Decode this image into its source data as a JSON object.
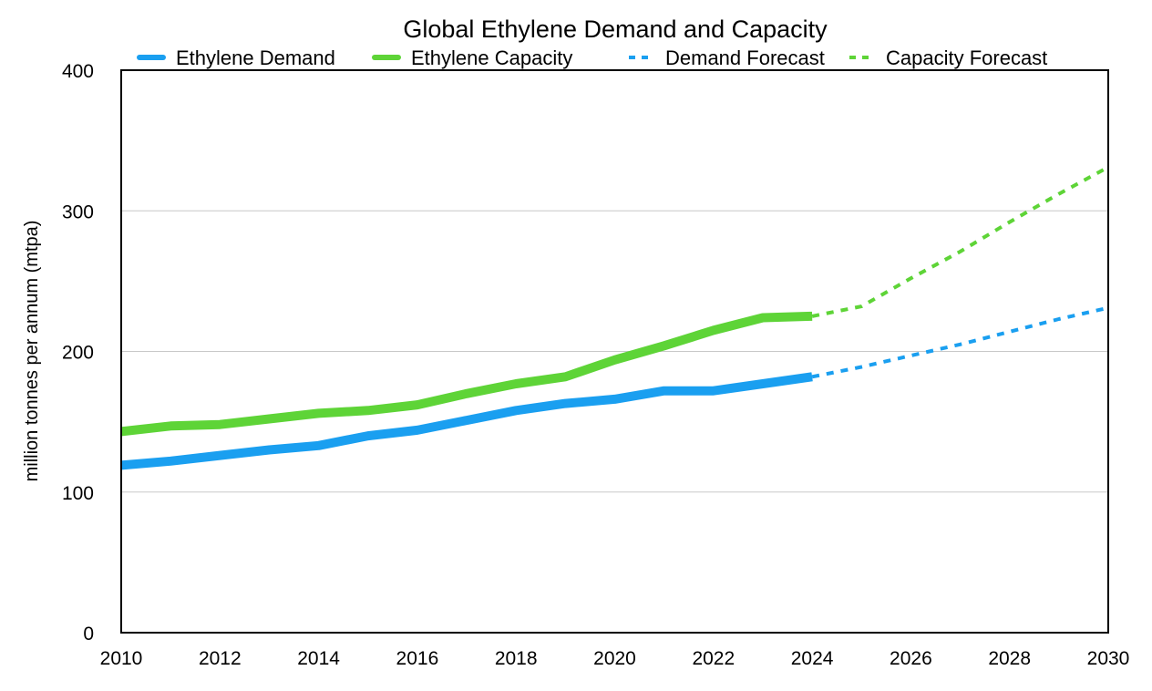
{
  "chart_data": {
    "type": "line",
    "title": "Global Ethylene Demand and Capacity",
    "xlabel": "",
    "ylabel": "million tonnes per annum (mtpa)",
    "xlim": [
      2010,
      2030
    ],
    "ylim": [
      0,
      400
    ],
    "x_ticks": [
      2010,
      2012,
      2014,
      2016,
      2018,
      2020,
      2022,
      2024,
      2026,
      2028,
      2030
    ],
    "y_ticks": [
      0,
      100,
      200,
      300,
      400
    ],
    "grid": "horizontal",
    "legend_position": "top",
    "series": [
      {
        "name": "Ethylene Demand",
        "color": "#1a9ff0",
        "style": "solid",
        "x": [
          2010,
          2011,
          2012,
          2013,
          2014,
          2015,
          2016,
          2017,
          2018,
          2019,
          2020,
          2021,
          2022,
          2023,
          2024
        ],
        "values": [
          119,
          122,
          126,
          130,
          133,
          140,
          144,
          151,
          158,
          163,
          166,
          172,
          172,
          177,
          182
        ]
      },
      {
        "name": "Ethylene Capacity",
        "color": "#5ed437",
        "style": "solid",
        "x": [
          2010,
          2011,
          2012,
          2013,
          2014,
          2015,
          2016,
          2017,
          2018,
          2019,
          2020,
          2021,
          2022,
          2023,
          2024
        ],
        "values": [
          143,
          147,
          148,
          152,
          156,
          158,
          162,
          170,
          177,
          182,
          194,
          204,
          215,
          224,
          225
        ]
      },
      {
        "name": "Demand Forecast",
        "color": "#1a9ff0",
        "style": "dashed",
        "x": [
          2024,
          2025,
          2026,
          2027,
          2028,
          2029,
          2030
        ],
        "values": [
          182,
          189,
          197,
          205,
          214,
          223,
          231
        ]
      },
      {
        "name": "Capacity Forecast",
        "color": "#5ed437",
        "style": "dashed",
        "x": [
          2024,
          2025,
          2026,
          2027,
          2028,
          2029,
          2030
        ],
        "values": [
          225,
          232,
          252,
          271,
          292,
          312,
          331
        ]
      }
    ]
  }
}
